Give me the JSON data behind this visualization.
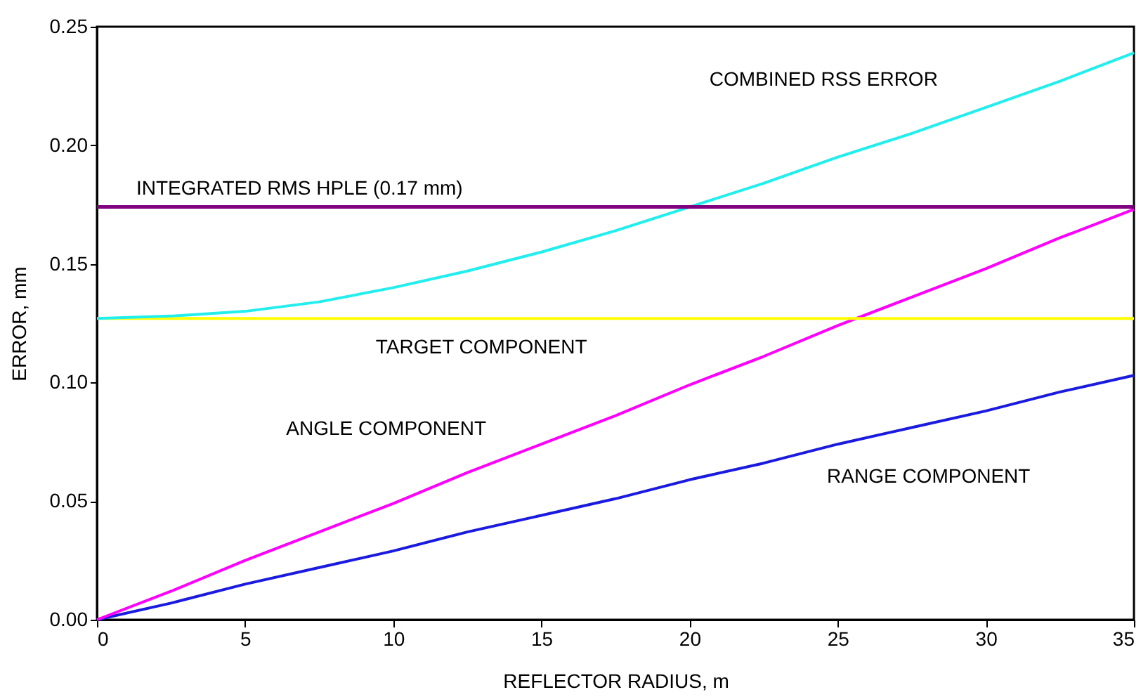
{
  "chart_data": {
    "type": "line",
    "xlabel": "REFLECTOR RADIUS, m",
    "ylabel": "ERROR, mm",
    "x": [
      0,
      2.5,
      5,
      7.5,
      10,
      12.5,
      15,
      17.5,
      20,
      22.5,
      25,
      27.5,
      30,
      32.5,
      35
    ],
    "series": [
      {
        "name": "RANGE COMPONENT",
        "color": "#1a1ae0",
        "values": [
          0,
          0.007,
          0.015,
          0.022,
          0.029,
          0.037,
          0.044,
          0.051,
          0.059,
          0.066,
          0.074,
          0.081,
          0.088,
          0.096,
          0.103
        ]
      },
      {
        "name": "ANGLE COMPONENT",
        "color": "#ff00ff",
        "values": [
          0,
          0.012,
          0.025,
          0.037,
          0.049,
          0.062,
          0.074,
          0.086,
          0.099,
          0.111,
          0.124,
          0.136,
          0.148,
          0.161,
          0.173
        ]
      },
      {
        "name": "TARGET COMPONENT",
        "color": "#ffff00",
        "values": [
          0.127,
          0.127,
          0.127,
          0.127,
          0.127,
          0.127,
          0.127,
          0.127,
          0.127,
          0.127,
          0.127,
          0.127,
          0.127,
          0.127,
          0.127
        ]
      },
      {
        "name": "COMBINED RSS ERROR",
        "color": "#22eeee",
        "values": [
          0.127,
          0.128,
          0.13,
          0.134,
          0.14,
          0.147,
          0.155,
          0.164,
          0.174,
          0.184,
          0.195,
          0.205,
          0.216,
          0.227,
          0.239
        ]
      }
    ],
    "ref_lines": [
      {
        "axis": "y",
        "value": 0.174,
        "label": "INTEGRATED RMS HPLE (0.17 mm)",
        "color": "#800080"
      }
    ],
    "xlim": [
      0,
      35
    ],
    "xticks": [
      0,
      5,
      10,
      15,
      20,
      25,
      30,
      35
    ],
    "ylim": [
      0,
      0.25
    ],
    "yticks": [
      {
        "value": 0,
        "label": "0.00"
      },
      0.05,
      {
        "value": 0.1,
        "label": "0.10"
      },
      0.15,
      {
        "value": 0.2,
        "label": "0.20"
      },
      0.25
    ],
    "grid": false
  }
}
